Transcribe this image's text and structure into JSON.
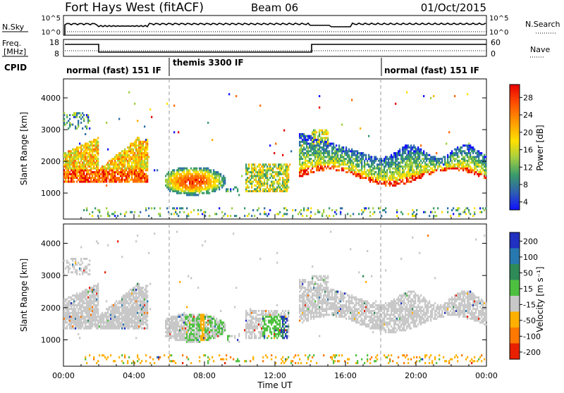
{
  "header": {
    "station": "Fort Hays West (fitACF)",
    "beam": "Beam 06",
    "date": "01/Oct/2015"
  },
  "status_panels": {
    "nsky_label": "N.Sky",
    "nsky_ticks": [
      "10^5",
      "10^0"
    ],
    "nsearch_label": "N.Search",
    "nsearch_ticks": [
      "10^5",
      "10^0"
    ],
    "freq_label_1": "Freq.",
    "freq_label_2": "[MHz]",
    "freq_ticks": [
      "18",
      "8"
    ],
    "nave_label": "Nave",
    "nave_ticks": [
      "60",
      "0"
    ],
    "cpid_label": "CPID",
    "cpid_segments": [
      {
        "label": "normal (fast) 151 IF",
        "start_hour": 0
      },
      {
        "label": "themis 3300 IF",
        "start_hour": 6
      },
      {
        "label": "normal (fast) 151 IF",
        "start_hour": 18
      }
    ]
  },
  "chart_data": [
    {
      "type": "heatmap",
      "name": "power",
      "ylabel": "Slant Range [km]",
      "yticks": [
        "4000",
        "3000",
        "2000",
        "1000"
      ],
      "ytick_values": [
        4000,
        3000,
        2000,
        1000
      ],
      "ylim": [
        180,
        4600
      ],
      "xlim": [
        0,
        24
      ],
      "colorbar": {
        "label": "Power [dB]",
        "ticks": [
          "28",
          "24",
          "20",
          "16",
          "12",
          "8",
          "4"
        ],
        "colors": [
          "#e80000",
          "#ff6a00",
          "#ffb000",
          "#ffe000",
          "#a0d040",
          "#3a9c6a",
          "#2f6fa8",
          "#1414ff"
        ]
      }
    },
    {
      "type": "heatmap",
      "name": "velocity",
      "ylabel": "Slant Range [km]",
      "yticks": [
        "4000",
        "3000",
        "2000",
        "1000"
      ],
      "ytick_values": [
        4000,
        3000,
        2000,
        1000
      ],
      "ylim": [
        180,
        4600
      ],
      "xlim": [
        0,
        24
      ],
      "colorbar": {
        "label": "Velocity [m s⁻¹]",
        "ticks": [
          "200",
          "100",
          "50",
          "15",
          "-15",
          "-50",
          "-100",
          "-200"
        ],
        "colors": [
          "#2030c0",
          "#2878b0",
          "#2e8b57",
          "#4ec040",
          "#c8c8c8",
          "#ffb000",
          "#ff7800",
          "#e82000"
        ]
      },
      "xlabel": "Time UT",
      "xticks": [
        "00:00",
        "04:00",
        "08:00",
        "12:00",
        "16:00",
        "20:00",
        "00:00"
      ],
      "xtick_values": [
        0,
        4,
        8,
        12,
        16,
        20,
        24
      ]
    }
  ]
}
